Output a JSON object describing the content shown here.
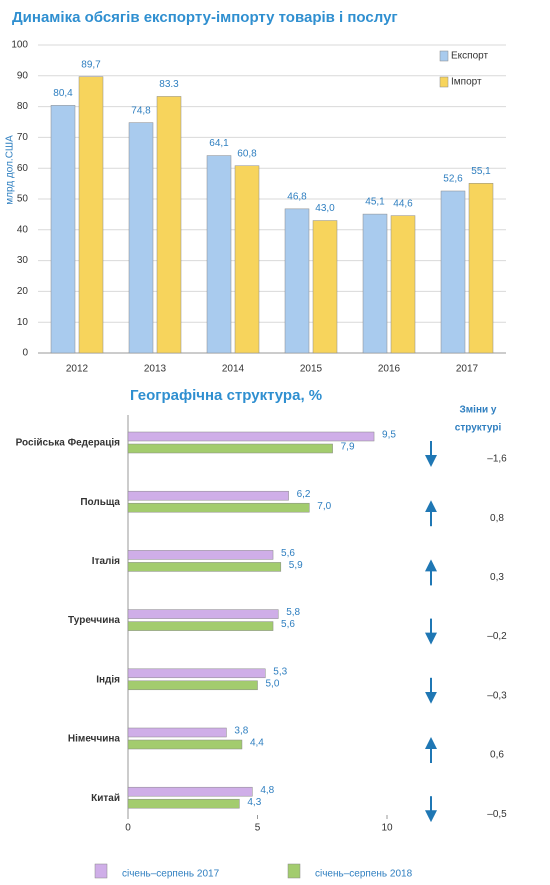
{
  "chart_data": [
    {
      "type": "bar",
      "title": "Динаміка обсягів експорту-імпорту товарів і послуг",
      "y_label": "млрд дол.США",
      "categories": [
        "2012",
        "2013",
        "2014",
        "2015",
        "2016",
        "2017"
      ],
      "series": [
        {
          "name": "Експорт",
          "color": "#a9cbee",
          "values": [
            80.4,
            74.8,
            64.1,
            46.8,
            45.1,
            52.6
          ],
          "value_labels": [
            "80,4",
            "74,8",
            "64,1",
            "46,8",
            "45,1",
            "52,6"
          ]
        },
        {
          "name": "Імпорт",
          "color": "#f7d45c",
          "values": [
            89.7,
            83.3,
            60.8,
            43.0,
            44.6,
            55.1
          ],
          "value_labels": [
            "89,7",
            "83.3",
            "60,8",
            "43,0",
            "44,6",
            "55,1"
          ]
        }
      ],
      "ylim": [
        0,
        100
      ],
      "yticks": [
        0,
        10,
        20,
        30,
        40,
        50,
        60,
        70,
        80,
        90,
        100
      ],
      "grid": true,
      "legend": "upper right"
    },
    {
      "type": "hbar",
      "title": "Географічна структура, %",
      "categories": [
        "Російська Федерація",
        "Польща",
        "Італія",
        "Туреччина",
        "Індія",
        "Німеччина",
        "Китай"
      ],
      "series": [
        {
          "name": "січень–серпень 2017",
          "color": "#cfaee8",
          "values": [
            9.5,
            6.2,
            5.6,
            5.8,
            5.3,
            3.8,
            4.8
          ],
          "value_labels": [
            "9,5",
            "6,2",
            "5,6",
            "5,8",
            "5,3",
            "3,8",
            "4,8"
          ]
        },
        {
          "name": "січень–серпень 2018",
          "color": "#a3cc6e",
          "values": [
            7.9,
            7.0,
            5.9,
            5.6,
            5.0,
            4.4,
            4.3
          ],
          "value_labels": [
            "7,9",
            "7,0",
            "5,9",
            "5,6",
            "5,0",
            "4,4",
            "4,3"
          ]
        }
      ],
      "xlim": [
        0,
        10
      ],
      "xticks": [
        0,
        5,
        10
      ],
      "legend": "lower center",
      "changes": {
        "title": [
          "Зміни у",
          "структурі"
        ],
        "values": [
          -1.6,
          0.8,
          0.3,
          -0.2,
          -0.3,
          0.6,
          -0.5
        ],
        "value_labels": [
          "–1,6",
          "0,8",
          "0,3",
          "–0,2",
          "–0,3",
          "0,6",
          "–0,5"
        ]
      }
    }
  ]
}
